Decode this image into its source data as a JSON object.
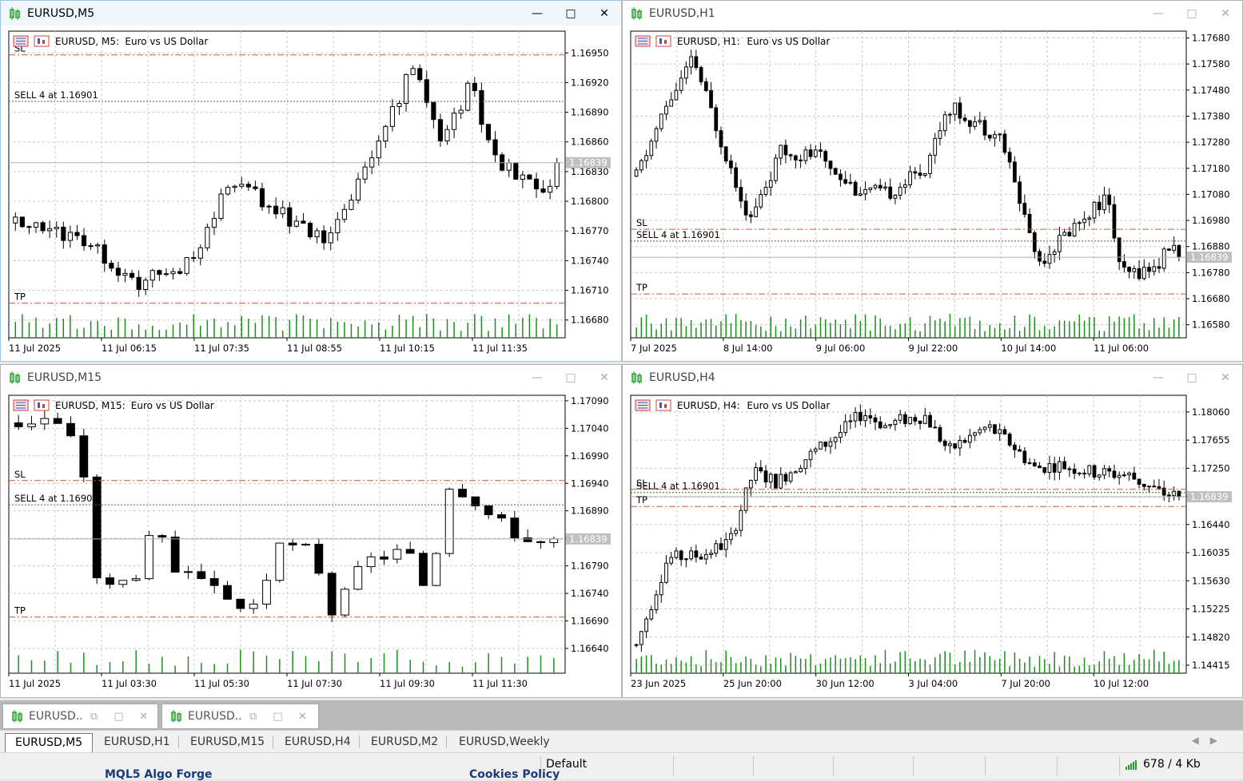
{
  "charts": [
    {
      "id": "m5",
      "window_title": "EURUSD,M5",
      "label_symbol": "EURUSD, M5:",
      "label_desc": "Euro vs US Dollar",
      "active": true,
      "y_ticks": [
        "1.16950",
        "1.16920",
        "1.16890",
        "1.16860",
        "1.16830",
        "1.16800",
        "1.16770",
        "1.16740",
        "1.16710",
        "1.16680"
      ],
      "y_range": [
        1.16662,
        1.16972
      ],
      "x_ticks": [
        "11 Jul 2025",
        "11 Jul 06:15",
        "11 Jul 07:35",
        "11 Jul 08:55",
        "11 Jul 10:15",
        "11 Jul 11:35"
      ],
      "price_tag": "1.16839",
      "current_price": 1.16839,
      "sl": {
        "label": "SL",
        "price": 1.16948
      },
      "entry": {
        "label": "SELL 4 at 1.16901",
        "price": 1.16901
      },
      "tp": {
        "label": "TP",
        "price": 1.16697
      },
      "candles": {
        "count": 80,
        "start": 1.16778,
        "path": [
          [
            0,
            1.16778
          ],
          [
            15,
            1.1676
          ],
          [
            25,
            1.16715
          ],
          [
            37,
            1.1674
          ],
          [
            45,
            1.16823
          ],
          [
            55,
            1.1679
          ],
          [
            65,
            1.16756
          ],
          [
            76,
            1.1686
          ],
          [
            83,
            1.16938
          ],
          [
            89,
            1.16864
          ],
          [
            95,
            1.16918
          ],
          [
            100,
            1.16842
          ],
          [
            111,
            1.1681
          ],
          [
            113,
            1.16832
          ]
        ],
        "seed": 5
      }
    },
    {
      "id": "h1",
      "window_title": "EURUSD,H1",
      "label_symbol": "EURUSD, H1:",
      "label_desc": "Euro vs US Dollar",
      "active": false,
      "y_ticks": [
        "1.17680",
        "1.17580",
        "1.17480",
        "1.17380",
        "1.17280",
        "1.17180",
        "1.17080",
        "1.16980",
        "1.16880",
        "1.16780",
        "1.16680",
        "1.16580"
      ],
      "y_range": [
        1.1653,
        1.17706
      ],
      "x_ticks": [
        "7 Jul 2025",
        "8 Jul 14:00",
        "9 Jul 06:00",
        "9 Jul 22:00",
        "10 Jul 14:00",
        "11 Jul 06:00"
      ],
      "price_tag": "1.16839",
      "current_price": 1.16839,
      "sl": {
        "label": "SL",
        "price": 1.16946
      },
      "entry": {
        "label": "SELL 4 at 1.16901",
        "price": 1.16901
      },
      "tp": {
        "label": "TP",
        "price": 1.16698
      },
      "candles": {
        "count": 110,
        "start": 1.1715,
        "path": [
          [
            0,
            1.1715
          ],
          [
            8,
            1.1742
          ],
          [
            15,
            1.176
          ],
          [
            22,
            1.173
          ],
          [
            30,
            1.1698
          ],
          [
            38,
            1.1724
          ],
          [
            48,
            1.1723
          ],
          [
            58,
            1.171
          ],
          [
            66,
            1.1708
          ],
          [
            76,
            1.1718
          ],
          [
            82,
            1.1742
          ],
          [
            96,
            1.173
          ],
          [
            106,
            1.1682
          ],
          [
            118,
            1.17
          ],
          [
            124,
            1.1707
          ],
          [
            128,
            1.1677
          ],
          [
            137,
            1.168
          ],
          [
            141,
            1.1689
          ],
          [
            143,
            1.1684
          ]
        ],
        "seed": 11
      }
    },
    {
      "id": "m15",
      "window_title": "EURUSD,M15",
      "label_symbol": "EURUSD, M15:",
      "label_desc": "Euro vs US Dollar",
      "active": false,
      "y_ticks": [
        "1.17090",
        "1.17040",
        "1.16990",
        "1.16940",
        "1.16890",
        "1.16840",
        "1.16790",
        "1.16740",
        "1.16690",
        "1.16640"
      ],
      "y_range": [
        1.16595,
        1.171
      ],
      "x_ticks": [
        "11 Jul 2025",
        "11 Jul 03:30",
        "11 Jul 05:30",
        "11 Jul 07:30",
        "11 Jul 09:30",
        "11 Jul 11:30"
      ],
      "price_tag": "1.16839",
      "current_price": 1.16839,
      "sl": {
        "label": "SL",
        "price": 1.16945
      },
      "entry": {
        "label": "SELL 4 at 1.16901",
        "price": 1.16901
      },
      "tp": {
        "label": "TP",
        "price": 1.16697
      },
      "candles": {
        "count": 42,
        "start": 1.1705,
        "path": [
          [
            0,
            1.1705
          ],
          [
            3,
            1.1706
          ],
          [
            6,
            1.17
          ],
          [
            7,
            1.168
          ],
          [
            8,
            1.1674
          ],
          [
            9,
            1.16755
          ],
          [
            11,
            1.1677
          ],
          [
            13,
            1.1686
          ],
          [
            15,
            1.1678
          ],
          [
            19,
            1.1674
          ],
          [
            22,
            1.16705
          ],
          [
            25,
            1.16825
          ],
          [
            28,
            1.1682
          ],
          [
            30,
            1.167
          ],
          [
            33,
            1.168
          ],
          [
            37,
            1.1682
          ],
          [
            39,
            1.1674
          ],
          [
            41,
            1.1694
          ],
          [
            43,
            1.1692
          ],
          [
            45,
            1.1688
          ],
          [
            49,
            1.1683
          ],
          [
            51,
            1.1683
          ]
        ],
        "seed": 3
      }
    },
    {
      "id": "h4",
      "window_title": "EURUSD,H4",
      "label_symbol": "EURUSD, H4:",
      "label_desc": "Euro vs US Dollar",
      "active": false,
      "y_ticks": [
        "1.18060",
        "1.17655",
        "1.17250",
        "1.16845",
        "1.16440",
        "1.16035",
        "1.15630",
        "1.15225",
        "1.14820",
        "1.14415"
      ],
      "y_range": [
        1.143,
        1.183
      ],
      "x_ticks": [
        "23 Jun 2025",
        "25 Jun 20:00",
        "30 Jun 12:00",
        "3 Jul 04:00",
        "7 Jul 20:00",
        "10 Jul 12:00"
      ],
      "price_tag": "1.16839",
      "current_price": 1.16839,
      "sl": {
        "label": "SL",
        "price": 1.16946
      },
      "entry": {
        "label": "SELL 4 at 1.16901",
        "price": 1.16901
      },
      "tp": {
        "label": "TP",
        "price": 1.167
      },
      "candles": {
        "count": 110,
        "start": 1.147,
        "path": [
          [
            0,
            1.147
          ],
          [
            8,
            1.1595
          ],
          [
            17,
            1.16
          ],
          [
            24,
            1.162
          ],
          [
            30,
            1.172
          ],
          [
            36,
            1.1705
          ],
          [
            44,
            1.1742
          ],
          [
            52,
            1.1775
          ],
          [
            58,
            1.1805
          ],
          [
            64,
            1.1785
          ],
          [
            68,
            1.1795
          ],
          [
            74,
            1.18
          ],
          [
            80,
            1.175
          ],
          [
            86,
            1.1772
          ],
          [
            90,
            1.1785
          ],
          [
            96,
            1.176
          ],
          [
            102,
            1.1725
          ],
          [
            108,
            1.173
          ],
          [
            116,
            1.172
          ],
          [
            126,
            1.1715
          ],
          [
            134,
            1.169
          ],
          [
            139,
            1.16845
          ]
        ],
        "seed": 7
      }
    }
  ],
  "minimized": [
    {
      "title": "EURUSD..."
    },
    {
      "title": "EURUSD..."
    }
  ],
  "tabs": [
    {
      "label": "EURUSD,M5",
      "active": true
    },
    {
      "label": "EURUSD,H1",
      "active": false
    },
    {
      "label": "EURUSD,M15",
      "active": false
    },
    {
      "label": "EURUSD,H4",
      "active": false
    },
    {
      "label": "EURUSD,M2",
      "active": false
    },
    {
      "label": "EURUSD,Weekly",
      "active": false
    }
  ],
  "status": {
    "profile": "Default",
    "traffic": "678 / 4 Kb"
  },
  "underlay": {
    "left_text": "MQL5 Algo Forge",
    "right_text": "Cookies Policy"
  },
  "colors": {
    "grid": "#c8c8c8",
    "sl_tp_line": "#d9542b",
    "entry_line": "#2a7a2a",
    "volume": "#1e8c1e",
    "price_tag_bg": "#c0c0c0",
    "active_border": "#9cc4e4"
  }
}
